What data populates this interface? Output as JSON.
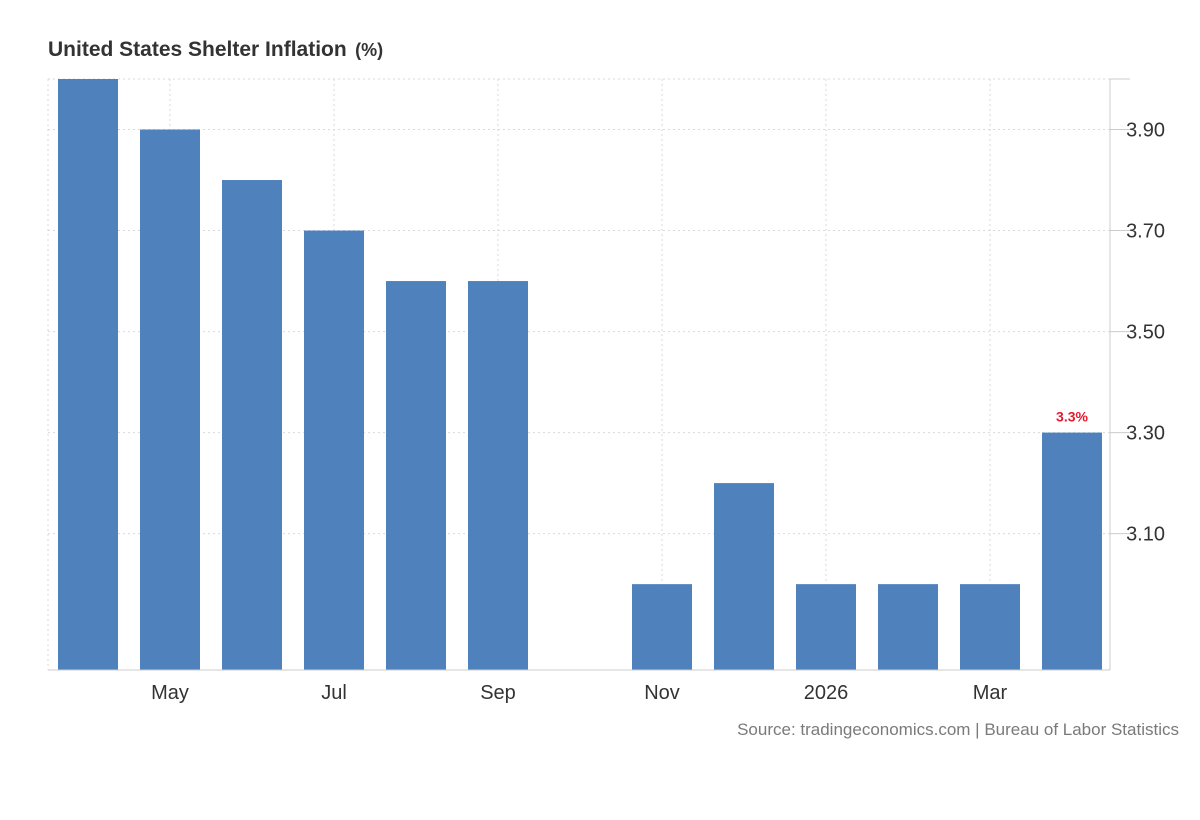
{
  "header": {
    "title": "United States Shelter Inflation",
    "unit": "(%)"
  },
  "source": "Source: tradingeconomics.com | Bureau of Labor Statistics",
  "colors": {
    "bar": "#4f81bd",
    "highlight_label": "#e8192c",
    "grid": "#d9d9d9",
    "axis": "#cccccc"
  },
  "chart_data": {
    "type": "bar",
    "title": "United States Shelter Inflation",
    "unit": "%",
    "xlabel": "",
    "ylabel": "",
    "categories": [
      "2025-04",
      "2025-05",
      "2025-06",
      "2025-07",
      "2025-08",
      "2025-09",
      "2025-10",
      "2025-11",
      "2025-12",
      "2026-01",
      "2026-02",
      "2026-03",
      "2026-04"
    ],
    "values": [
      4.0,
      3.9,
      3.8,
      3.7,
      3.6,
      3.6,
      null,
      3.0,
      3.2,
      3.0,
      3.0,
      3.0,
      3.3
    ],
    "x_tick_labels": [
      {
        "category": "2025-05",
        "label": "May"
      },
      {
        "category": "2025-07",
        "label": "Jul"
      },
      {
        "category": "2025-09",
        "label": "Sep"
      },
      {
        "category": "2025-11",
        "label": "Nov"
      },
      {
        "category": "2026-01",
        "label": "2026"
      },
      {
        "category": "2026-03",
        "label": "Mar"
      }
    ],
    "y_ticks": [
      3.1,
      3.3,
      3.5,
      3.7,
      3.9
    ],
    "y_tick_labels": [
      "3.10",
      "3.30",
      "3.50",
      "3.70",
      "3.90"
    ],
    "ylim": [
      2.83,
      4.0
    ],
    "y_axis_side": "right",
    "grid": true,
    "legend": "none",
    "annotations": [
      {
        "category": "2026-04",
        "text": "3.3%"
      }
    ]
  }
}
